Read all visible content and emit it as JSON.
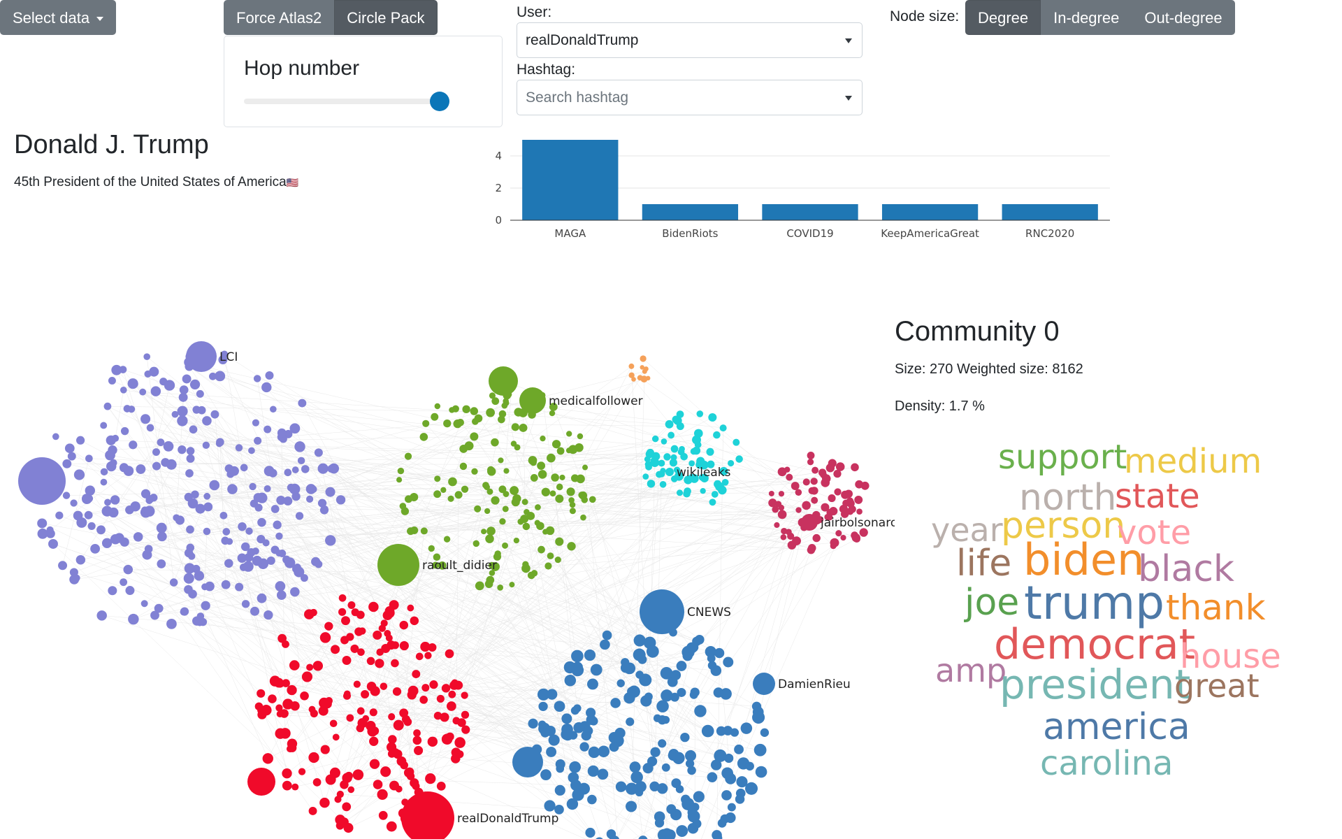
{
  "controls": {
    "select_data_label": "Select data",
    "layout_buttons": [
      "Force Atlas2",
      "Circle Pack"
    ],
    "hop_number_label": "Hop number",
    "hop_slider_value": 1.0,
    "user_label": "User:",
    "user_value": "realDonaldTrump",
    "hashtag_label": "Hashtag:",
    "hashtag_placeholder": "Search hashtag",
    "node_size_label": "Node size:",
    "node_size_buttons": [
      "Degree",
      "In-degree",
      "Out-degree"
    ]
  },
  "profile": {
    "name": "Donald J. Trump",
    "bio": "45th President of the United States of America",
    "flag_emoji": "🇺🇸"
  },
  "chart_data": {
    "type": "bar",
    "categories": [
      "MAGA",
      "BidenRiots",
      "COVID19",
      "KeepAmericaGreat",
      "RNC2020"
    ],
    "values": [
      5,
      1,
      1,
      1,
      1
    ],
    "ylim": [
      0,
      5
    ],
    "yticks": [
      0,
      2,
      4
    ],
    "color": "#1f77b4"
  },
  "community": {
    "title": "Community 0",
    "size_line": "Size: 270 Weighted size: 8162",
    "density_line": "Density: 1.7 %"
  },
  "wordcloud": [
    {
      "text": "support",
      "color": "#6ab04c"
    },
    {
      "text": "medium",
      "color": "#edc948"
    },
    {
      "text": "north",
      "color": "#bab0ac"
    },
    {
      "text": "state",
      "color": "#e15759"
    },
    {
      "text": "year",
      "color": "#bab0ac"
    },
    {
      "text": "person",
      "color": "#edc948"
    },
    {
      "text": "vote",
      "color": "#ff9da7"
    },
    {
      "text": "life",
      "color": "#9c755f"
    },
    {
      "text": "biden",
      "color": "#f28e2b"
    },
    {
      "text": "black",
      "color": "#b07aa1"
    },
    {
      "text": "joe",
      "color": "#59a14f"
    },
    {
      "text": "trump",
      "color": "#4e79a7"
    },
    {
      "text": "thank",
      "color": "#f28e2b"
    },
    {
      "text": "democrat",
      "color": "#e15759"
    },
    {
      "text": "house",
      "color": "#ff9da7"
    },
    {
      "text": "amp",
      "color": "#b07aa1"
    },
    {
      "text": "president",
      "color": "#76b7b2"
    },
    {
      "text": "great",
      "color": "#9c755f"
    },
    {
      "text": "america",
      "color": "#4e79a7"
    },
    {
      "text": "carolina",
      "color": "#76b7b2"
    }
  ],
  "network": {
    "node_labels": [
      "LCI",
      "medicalfollower",
      "wikileaks",
      "jairbolsonaro",
      "raoult_didier",
      "CNEWS",
      "DamienRieu",
      "realDonaldTrump"
    ],
    "community_colors": {
      "purple": "#8181d4",
      "green": "#6ea829",
      "cyan": "#1ed2d8",
      "crimson": "#c8325f",
      "red": "#f00a2a",
      "blue": "#3a7dbd",
      "orange": "#f5a15a"
    }
  }
}
